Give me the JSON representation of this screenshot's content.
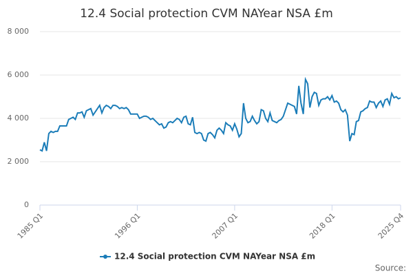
{
  "chart_data": {
    "type": "line",
    "title": "12.4 Social protection CVM NAYear NSA £m",
    "source": "Source:",
    "categories": [
      "1985 Q1",
      null,
      null,
      null,
      null,
      null,
      null,
      null,
      null,
      null,
      null,
      null,
      null,
      null,
      null,
      null,
      null,
      null,
      null,
      null,
      null,
      null,
      null,
      null,
      null,
      null,
      null,
      null,
      null,
      null,
      null,
      null,
      null,
      null,
      null,
      null,
      null,
      null,
      null,
      null,
      null,
      null,
      null,
      null,
      "1996 Q1",
      null,
      null,
      null,
      null,
      null,
      null,
      null,
      null,
      null,
      null,
      null,
      null,
      null,
      null,
      null,
      null,
      null,
      null,
      null,
      null,
      null,
      null,
      null,
      null,
      null,
      null,
      null,
      null,
      null,
      null,
      null,
      null,
      null,
      null,
      null,
      null,
      null,
      null,
      null,
      null,
      null,
      null,
      null,
      "2007 Q1",
      null,
      null,
      null,
      null,
      null,
      null,
      null,
      null,
      null,
      null,
      null,
      null,
      null,
      null,
      null,
      null,
      null,
      null,
      null,
      null,
      null,
      null,
      null,
      null,
      null,
      null,
      null,
      null,
      null,
      null,
      null,
      null,
      null,
      null,
      null,
      null,
      null,
      null,
      null,
      null,
      null,
      null,
      null,
      "2018 Q1",
      null,
      null,
      null,
      null,
      null,
      null,
      null,
      null,
      null,
      null,
      null,
      null,
      null,
      null,
      null,
      null,
      null,
      null,
      null,
      null,
      null,
      null,
      null,
      null,
      null,
      null,
      null,
      null,
      null,
      null,
      "2025 Q4"
    ],
    "series": [
      {
        "name": "12.4 Social protection CVM NAYear NSA £m",
        "color": "#1a7cb8",
        "values": [
          2550,
          2500,
          2900,
          2500,
          3300,
          3400,
          3350,
          3400,
          3400,
          3650,
          3650,
          3650,
          3650,
          3950,
          4000,
          4050,
          3950,
          4250,
          4250,
          4300,
          4050,
          4350,
          4400,
          4450,
          4150,
          4300,
          4450,
          4600,
          4250,
          4500,
          4600,
          4550,
          4450,
          4600,
          4600,
          4550,
          4450,
          4500,
          4450,
          4500,
          4400,
          4200,
          4200,
          4200,
          4200,
          4000,
          4050,
          4100,
          4100,
          4050,
          3950,
          4000,
          3900,
          3800,
          3700,
          3750,
          3550,
          3600,
          3800,
          3850,
          3800,
          3900,
          4000,
          3950,
          3800,
          4050,
          4100,
          3750,
          3700,
          4050,
          3350,
          3300,
          3350,
          3300,
          3000,
          2950,
          3300,
          3350,
          3250,
          3100,
          3450,
          3550,
          3450,
          3300,
          3800,
          3700,
          3650,
          3450,
          3750,
          3500,
          3150,
          3300,
          4700,
          4000,
          3800,
          3850,
          4100,
          3900,
          3750,
          3850,
          4400,
          4350,
          4000,
          3850,
          4250,
          3900,
          3850,
          3800,
          3900,
          3950,
          4100,
          4400,
          4700,
          4650,
          4600,
          4550,
          4200,
          5500,
          4700,
          4200,
          5800,
          5600,
          4500,
          5000,
          5200,
          5150,
          4600,
          4850,
          4900,
          4900,
          5000,
          4850,
          5050,
          4750,
          4800,
          4700,
          4400,
          4300,
          4400,
          4150,
          2950,
          3300,
          3250,
          3850,
          3900,
          4300,
          4350,
          4450,
          4500,
          4800,
          4750,
          4750,
          4500,
          4700,
          4800,
          4550,
          4850,
          4900,
          4650,
          5150,
          4950,
          5000,
          4900,
          4950
        ]
      }
    ],
    "ylim": [
      0,
      8000
    ],
    "yticks": [
      0,
      {
        "value": 2000,
        "label": "2 000"
      },
      {
        "value": 4000,
        "label": "4 000"
      },
      {
        "value": 6000,
        "label": "6 000"
      },
      {
        "value": 8000,
        "label": "8 000"
      }
    ],
    "grid": true
  }
}
